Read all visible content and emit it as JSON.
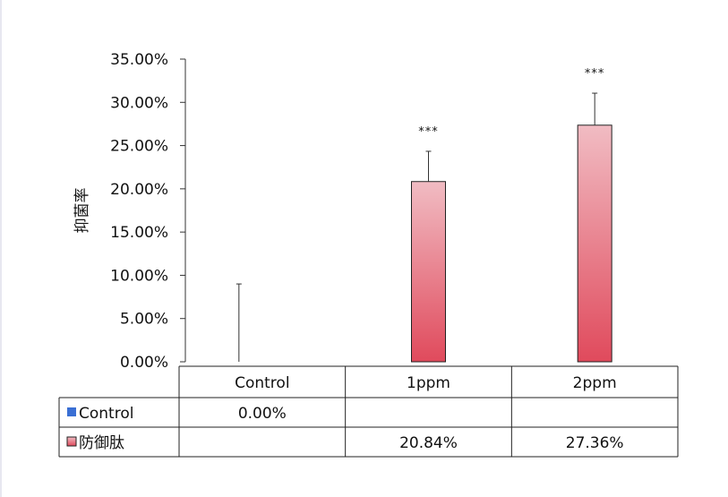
{
  "chart_data": {
    "type": "bar",
    "ylabel": "抑菌率",
    "ylim": [
      0,
      0.35
    ],
    "ytick_values": [
      0,
      0.05,
      0.1,
      0.15,
      0.2,
      0.25,
      0.3,
      0.35
    ],
    "ytick_labels": [
      "0.00%",
      "5.00%",
      "10.00%",
      "15.00%",
      "20.00%",
      "25.00%",
      "30.00%",
      "35.00%"
    ],
    "categories": [
      "Control",
      "1ppm",
      "2ppm"
    ],
    "series": [
      {
        "name": "Control",
        "color": "#3a6fd4",
        "values": [
          0.0,
          null,
          null
        ],
        "errors": [
          0.09,
          null,
          null
        ],
        "labels": [
          "0.00%",
          "",
          ""
        ]
      },
      {
        "name": "防御肽",
        "color": "#e04a5c",
        "color_light": "#f1bcc3",
        "values": [
          null,
          0.2084,
          0.2736
        ],
        "errors": [
          null,
          0.035,
          0.037
        ],
        "labels": [
          "",
          "20.84%",
          "27.36%"
        ]
      }
    ],
    "significance": [
      "",
      "***",
      "***"
    ],
    "grid": false,
    "legend": "data-table"
  }
}
